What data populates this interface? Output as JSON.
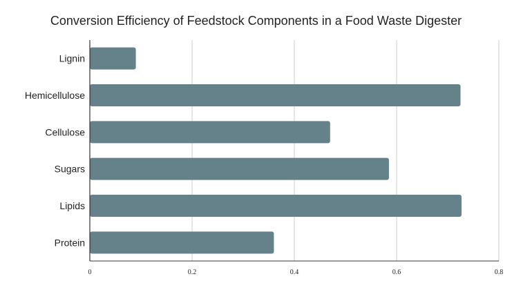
{
  "chart_data": {
    "type": "bar",
    "orientation": "horizontal",
    "title": "Conversion Efficiency of Feedstock Components in a Food Waste Digester",
    "xlabel": "",
    "ylabel": "",
    "categories": [
      "Lignin",
      "Hemicellulose",
      "Cellulose",
      "Sugars",
      "Lipids",
      "Protein"
    ],
    "values": [
      0.09,
      0.725,
      0.47,
      0.585,
      0.727,
      0.36
    ],
    "xlim": [
      0,
      0.8
    ],
    "xticks": [
      "0",
      "0.2",
      "0.4",
      "0.6",
      "0.8"
    ],
    "grid": "vertical",
    "legend": "none",
    "bar_color": "#65828a",
    "grid_color": "#cccccc",
    "axis_color": "#333333"
  }
}
